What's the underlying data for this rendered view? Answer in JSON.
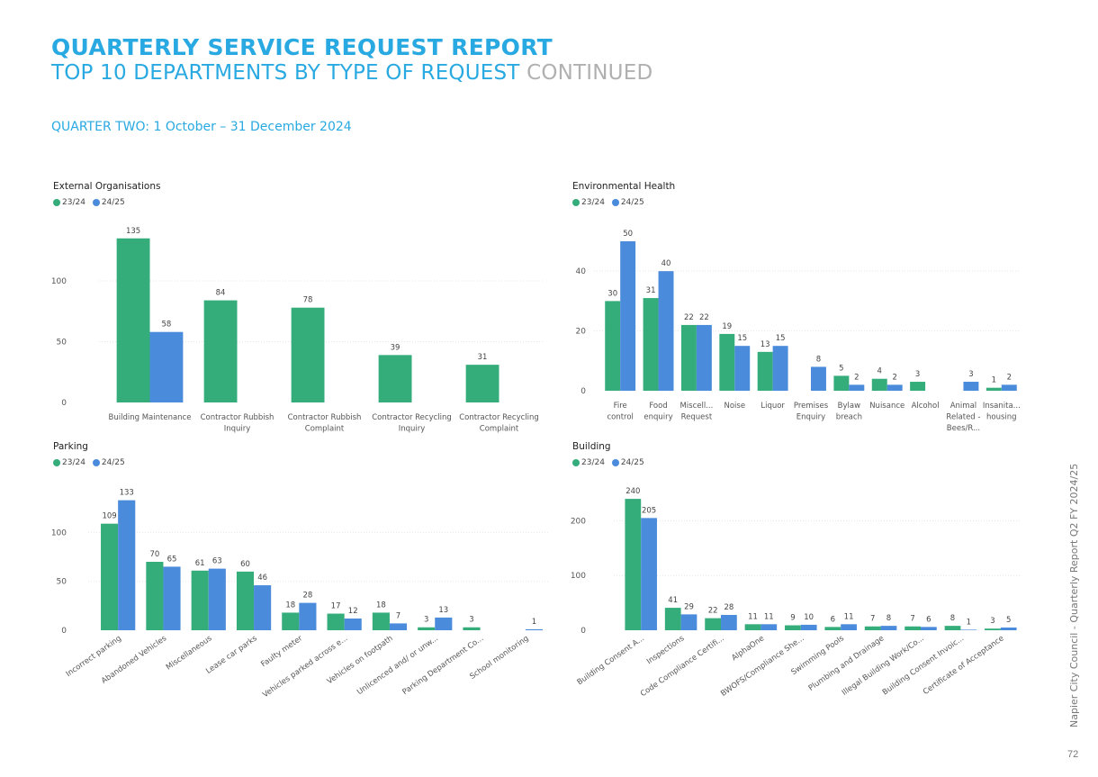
{
  "header": {
    "title": "QUARTERLY SERVICE REQUEST REPORT",
    "subtitle": "TOP 10 DEPARTMENTS BY TYPE OF REQUEST",
    "subtitle_suffix": "CONTINUED",
    "quarter": "QUARTER TWO: 1 October – 31 December 2024"
  },
  "footer": {
    "side_text": "Napier City Council - Quarterly Report Q2 FY 2024/25",
    "page_number": "72"
  },
  "colors": {
    "series1": "#34ad7b",
    "series2": "#4a8bdc",
    "grid": "#e6e6e6",
    "title": "#29a9e1"
  },
  "chart_data": [
    {
      "id": "external",
      "type": "bar",
      "title": "External Organisations",
      "legend": [
        "23/24",
        "24/25"
      ],
      "legend_placement": "top-left",
      "categories": [
        "Building Maintenance",
        "Contractor Rubbish Inquiry",
        "Contractor Rubbish Complaint",
        "Contractor Recycling Inquiry",
        "Contractor Recycling Complaint"
      ],
      "category_labels": [
        [
          "Building Maintenance"
        ],
        [
          "Contractor Rubbish",
          "Inquiry"
        ],
        [
          "Contractor Rubbish",
          "Complaint"
        ],
        [
          "Contractor Recycling",
          "Inquiry"
        ],
        [
          "Contractor Recycling",
          "Complaint"
        ]
      ],
      "series": [
        {
          "name": "23/24",
          "values": [
            135,
            84,
            78,
            39,
            31
          ]
        },
        {
          "name": "24/25",
          "values": [
            58,
            null,
            null,
            null,
            null
          ]
        }
      ],
      "yticks": [
        0,
        50,
        100
      ],
      "ylim": [
        0,
        140
      ],
      "grid": true
    },
    {
      "id": "envhealth",
      "type": "bar",
      "title": "Environmental Health",
      "legend": [
        "23/24",
        "24/25"
      ],
      "legend_placement": "top-left",
      "categories": [
        "Fire control",
        "Food enquiry",
        "Miscell... Request",
        "Noise",
        "Liquor",
        "Premises Enquiry",
        "Bylaw breach",
        "Nuisance",
        "Alcohol",
        "Animal Related - Bees/R...",
        "Insanita... housing"
      ],
      "category_labels": [
        [
          "Fire",
          "control"
        ],
        [
          "Food",
          "enquiry"
        ],
        [
          "Miscell...",
          "Request"
        ],
        [
          "Noise"
        ],
        [
          "Liquor"
        ],
        [
          "Premises",
          "Enquiry"
        ],
        [
          "Bylaw",
          "breach"
        ],
        [
          "Nuisance"
        ],
        [
          "Alcohol"
        ],
        [
          "Animal",
          "Related -",
          "Bees/R..."
        ],
        [
          "Insanita...",
          "housing"
        ]
      ],
      "series": [
        {
          "name": "23/24",
          "values": [
            30,
            31,
            22,
            19,
            13,
            null,
            5,
            4,
            3,
            null,
            1
          ]
        },
        {
          "name": "24/25",
          "values": [
            50,
            40,
            22,
            15,
            15,
            8,
            2,
            2,
            null,
            3,
            2
          ]
        }
      ],
      "yticks": [
        0,
        20,
        40
      ],
      "ylim": [
        0,
        53
      ],
      "grid": true
    },
    {
      "id": "parking",
      "type": "bar",
      "title": "Parking",
      "legend": [
        "23/24",
        "24/25"
      ],
      "legend_placement": "top-left",
      "categories": [
        "Incorrect parking",
        "Abandoned Vehicles",
        "Miscellaneous",
        "Lease car parks",
        "Faulty meter",
        "Vehicles parked across e...",
        "Vehicles on footpath",
        "Unlicenced and/ or unw...",
        "Parking Department Co...",
        "School monitoring"
      ],
      "series": [
        {
          "name": "23/24",
          "values": [
            109,
            70,
            61,
            60,
            18,
            17,
            18,
            3,
            3,
            null
          ]
        },
        {
          "name": "24/25",
          "values": [
            133,
            65,
            63,
            46,
            28,
            12,
            7,
            13,
            null,
            1
          ]
        }
      ],
      "yticks": [
        0,
        50,
        100
      ],
      "ylim": [
        0,
        140
      ],
      "grid": true
    },
    {
      "id": "building",
      "type": "bar",
      "title": "Building",
      "legend": [
        "23/24",
        "24/25"
      ],
      "legend_placement": "top-left",
      "categories": [
        "Building Consent A...",
        "Inspections",
        "Code Compliance Certifi...",
        "AlphaOne",
        "BWOFS/Compliance She...",
        "Swimming Pools",
        "Plumbing and Drainage",
        "Illegal Building Work/Co...",
        "Building Consent Invoic...",
        "Certificate of Acceptance"
      ],
      "series": [
        {
          "name": "23/24",
          "values": [
            240,
            41,
            22,
            11,
            9,
            6,
            7,
            7,
            8,
            3
          ]
        },
        {
          "name": "24/25",
          "values": [
            205,
            29,
            28,
            11,
            10,
            11,
            8,
            6,
            1,
            5
          ]
        }
      ],
      "yticks": [
        0,
        100,
        200
      ],
      "ylim": [
        0,
        250
      ],
      "grid": true
    }
  ]
}
